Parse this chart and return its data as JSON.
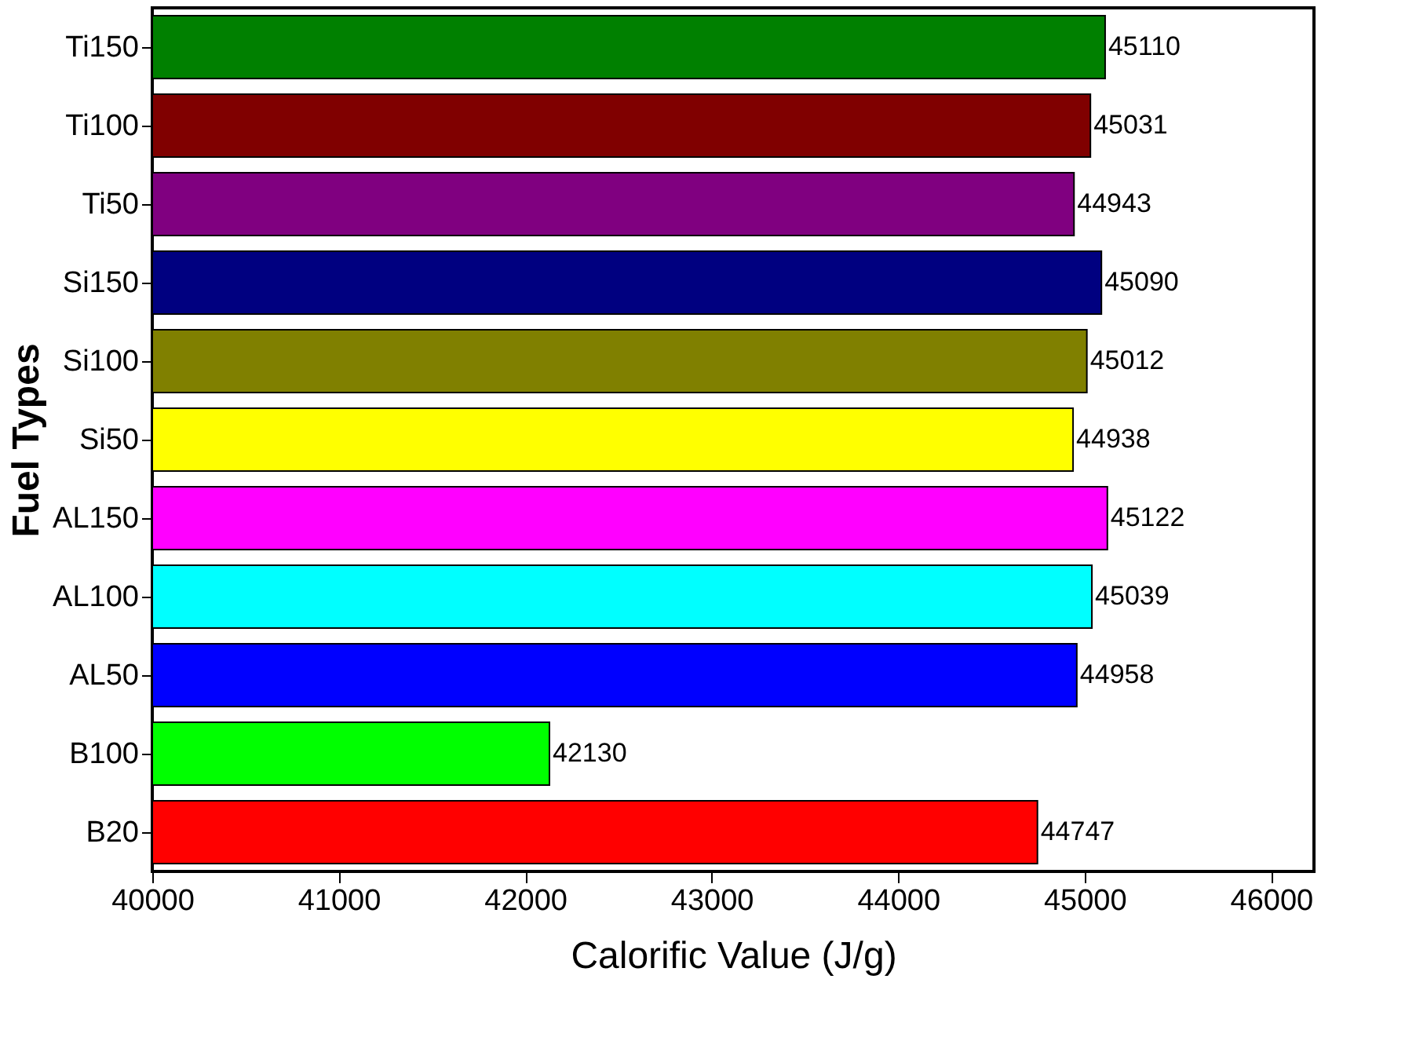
{
  "chart_data": {
    "type": "bar",
    "orientation": "horizontal",
    "xlabel": "Calorific Value (J/g)",
    "ylabel": "Fuel Types",
    "categories": [
      "Ti150",
      "Ti100",
      "Ti50",
      "Si150",
      "Si100",
      "Si50",
      "AL150",
      "AL100",
      "AL50",
      "B100",
      "B20"
    ],
    "values": [
      45110,
      45031,
      44943,
      45090,
      45012,
      44938,
      45122,
      45039,
      44958,
      42130,
      44747
    ],
    "colors": [
      "#008000",
      "#800000",
      "#800080",
      "#000080",
      "#808000",
      "#ffff00",
      "#ff00ff",
      "#00ffff",
      "#0000ff",
      "#00ff00",
      "#ff0000"
    ],
    "xlim": [
      40000,
      46230
    ],
    "xticks": [
      40000,
      41000,
      42000,
      43000,
      44000,
      45000,
      46000
    ],
    "data_labels": true,
    "grid": false
  }
}
